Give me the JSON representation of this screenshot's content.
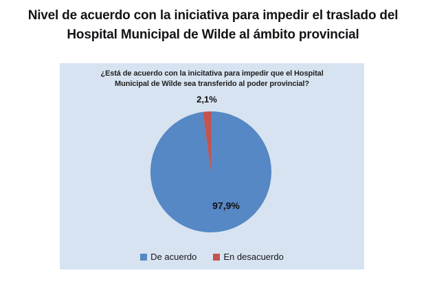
{
  "header": {
    "title_lines": [
      "Nivel de acuerdo con la iniciativa para impedir el traslado del",
      "Hospital Municipal de Wilde al ámbito provincial"
    ]
  },
  "chart_data": {
    "type": "pie",
    "title": "¿Está de acuerdo con la inicitativa para impedir que el Hospital Municipal de Wilde sea transferido al poder provincial?",
    "title_lines": [
      "¿Está de acuerdo con la inicitativa para impedir que el Hospital",
      "Municipal de Wilde sea transferido al poder provincial?"
    ],
    "categories": [
      "De acuerdo",
      "En desacuerdo"
    ],
    "values": [
      97.9,
      2.1
    ],
    "values_display": [
      "97,9%",
      "2,1%"
    ],
    "unit": "%",
    "colors": [
      "#5588c4",
      "#c5534e"
    ],
    "plot_bg": "#d7e3f1",
    "start_angle_deg": 0,
    "direction": "clockwise",
    "legend_position": "bottom",
    "grid": false
  }
}
